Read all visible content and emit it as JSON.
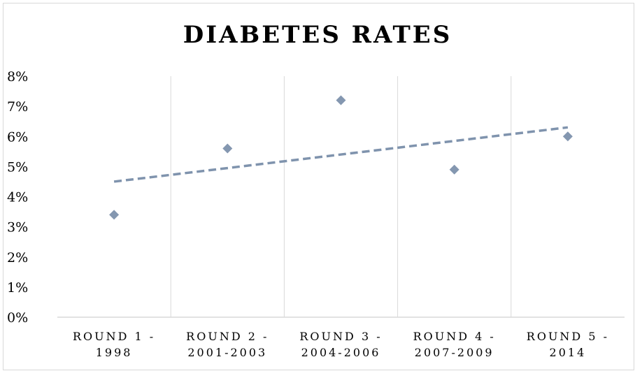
{
  "chart_data": {
    "type": "scatter",
    "title": "DIABETES RATES",
    "categories": [
      [
        "ROUND 1 -",
        "1998"
      ],
      [
        "ROUND 2 -",
        "2001-2003"
      ],
      [
        "ROUND 3 -",
        "2004-2006"
      ],
      [
        "ROUND 4 -",
        "2007-2009"
      ],
      [
        "ROUND 5 -",
        "2014"
      ]
    ],
    "y_ticks": [
      "0%",
      "1%",
      "2%",
      "3%",
      "4%",
      "5%",
      "6%",
      "7%",
      "8%"
    ],
    "values": [
      3.4,
      5.6,
      7.2,
      4.9,
      6.0
    ],
    "ylim": [
      0,
      8
    ],
    "trendline": {
      "type": "linear",
      "style": "dashed",
      "start": 4.5,
      "end": 6.3
    },
    "marker": "diamond",
    "grid": "vertical",
    "colors": {
      "marker": "#8497b0",
      "trendline": "#7f93ad",
      "grid": "#d9d9d9"
    }
  }
}
